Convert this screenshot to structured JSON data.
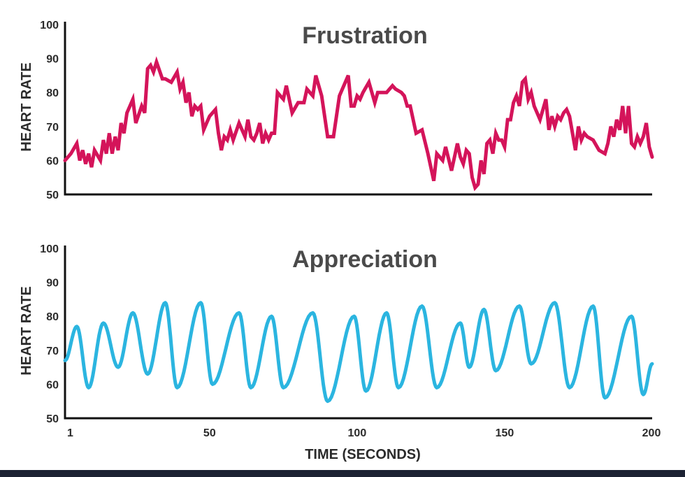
{
  "colors": {
    "frustration": "#d4145a",
    "appreciation": "#2bb5e0",
    "axis": "#111111",
    "footer": "#1c2233"
  },
  "chart_data": [
    {
      "type": "line",
      "title": "Frustration",
      "ylabel": "HEART RATE",
      "xlabel": "",
      "ylim": [
        50,
        100
      ],
      "yticks": [
        "100",
        "90",
        "80",
        "70",
        "60",
        "50"
      ],
      "xlim": [
        1,
        200
      ],
      "grid": false,
      "series": [
        {
          "x": [
            1,
            3,
            5,
            6,
            7,
            8,
            9,
            10,
            11,
            13,
            14,
            15,
            16,
            17,
            18,
            19,
            20,
            21,
            22,
            23,
            24,
            25,
            27,
            28,
            29,
            30,
            31,
            32,
            34,
            35,
            37,
            39,
            40,
            41,
            42,
            43,
            44,
            45,
            46,
            47,
            48,
            49,
            50,
            52,
            53,
            54,
            55,
            56,
            57,
            58,
            60,
            62,
            63,
            64,
            65,
            66,
            67,
            68,
            69,
            70,
            71,
            72,
            73,
            74,
            75,
            76,
            78,
            80,
            82,
            83,
            85,
            86,
            88,
            90,
            92,
            94,
            96,
            97,
            98,
            99,
            100,
            101,
            102,
            104,
            106,
            107,
            108,
            110,
            112,
            113,
            115,
            116,
            117,
            118,
            120,
            122,
            124,
            126,
            127,
            129,
            130,
            132,
            134,
            135,
            136,
            137,
            138,
            139,
            140,
            141,
            142,
            143,
            144,
            145,
            146,
            147,
            148,
            149,
            150,
            151,
            152,
            153,
            154,
            155,
            156,
            157,
            158,
            159,
            160,
            162,
            164,
            165,
            166,
            167,
            168,
            169,
            170,
            171,
            172,
            174,
            175,
            176,
            177,
            178,
            180,
            182,
            184,
            185,
            186,
            187,
            188,
            189,
            190,
            191,
            192,
            193,
            194,
            195,
            196,
            197,
            198,
            199,
            200
          ],
          "y": [
            60,
            62,
            65,
            60,
            63,
            59,
            62,
            58,
            63,
            60,
            66,
            62,
            68,
            62,
            67,
            63,
            71,
            68,
            74,
            76,
            78,
            71,
            76,
            74,
            87,
            88,
            86,
            89,
            84,
            84,
            83,
            86,
            81,
            83,
            77,
            80,
            73,
            76,
            75,
            76,
            69,
            71,
            73,
            75,
            68,
            63,
            67,
            66,
            69,
            66,
            71,
            67,
            72,
            67,
            66,
            68,
            71,
            65,
            68,
            66,
            68,
            68,
            80,
            79,
            78,
            82,
            74,
            77,
            77,
            81,
            79,
            85,
            79,
            67,
            67,
            79,
            83,
            85,
            76,
            76,
            79,
            78,
            80,
            83,
            77,
            80,
            80,
            80,
            82,
            81,
            80,
            79,
            76,
            76,
            68,
            69,
            62,
            54,
            62,
            60,
            64,
            57,
            65,
            61,
            59,
            63,
            62,
            55,
            52,
            53,
            60,
            56,
            65,
            66,
            62,
            68,
            66,
            66,
            64,
            72,
            72,
            77,
            79,
            76,
            83,
            84,
            78,
            80,
            76,
            72,
            78,
            69,
            73,
            70,
            73,
            72,
            74,
            75,
            73,
            63,
            70,
            66,
            68,
            67,
            66,
            63,
            62,
            65,
            70,
            67,
            72,
            69,
            76,
            68,
            76,
            65,
            64,
            67,
            65,
            67,
            71,
            64,
            61
          ]
        }
      ]
    },
    {
      "type": "line",
      "title": "Appreciation",
      "ylabel": "HEART RATE",
      "xlabel": "TIME (SECONDS)",
      "ylim": [
        50,
        100
      ],
      "yticks": [
        "100",
        "90",
        "80",
        "70",
        "60",
        "50"
      ],
      "xlim": [
        1,
        200
      ],
      "xticks": [
        {
          "value": 1,
          "label": "1"
        },
        {
          "value": 50,
          "label": "50"
        },
        {
          "value": 100,
          "label": "100"
        },
        {
          "value": 150,
          "label": "150"
        },
        {
          "value": 200,
          "label": "200"
        }
      ],
      "grid": false,
      "series": [
        {
          "peaks": [
            {
              "x": 1,
              "y": 67
            },
            {
              "x": 5,
              "y": 77
            },
            {
              "x": 9,
              "y": 59
            },
            {
              "x": 14,
              "y": 78
            },
            {
              "x": 19,
              "y": 65
            },
            {
              "x": 24,
              "y": 81
            },
            {
              "x": 29,
              "y": 63
            },
            {
              "x": 35,
              "y": 84
            },
            {
              "x": 39,
              "y": 59
            },
            {
              "x": 47,
              "y": 84
            },
            {
              "x": 51,
              "y": 60
            },
            {
              "x": 60,
              "y": 81
            },
            {
              "x": 64,
              "y": 59
            },
            {
              "x": 71,
              "y": 80
            },
            {
              "x": 75,
              "y": 59
            },
            {
              "x": 85,
              "y": 81
            },
            {
              "x": 90,
              "y": 55
            },
            {
              "x": 99,
              "y": 80
            },
            {
              "x": 103,
              "y": 58
            },
            {
              "x": 110,
              "y": 81
            },
            {
              "x": 114,
              "y": 59
            },
            {
              "x": 122,
              "y": 83
            },
            {
              "x": 127,
              "y": 59
            },
            {
              "x": 135,
              "y": 78
            },
            {
              "x": 138,
              "y": 65
            },
            {
              "x": 143,
              "y": 82
            },
            {
              "x": 147,
              "y": 64
            },
            {
              "x": 155,
              "y": 83
            },
            {
              "x": 159,
              "y": 66
            },
            {
              "x": 167,
              "y": 84
            },
            {
              "x": 172,
              "y": 59
            },
            {
              "x": 180,
              "y": 83
            },
            {
              "x": 184,
              "y": 56
            },
            {
              "x": 193,
              "y": 80
            },
            {
              "x": 197,
              "y": 57
            },
            {
              "x": 200,
              "y": 66
            }
          ]
        }
      ]
    }
  ]
}
